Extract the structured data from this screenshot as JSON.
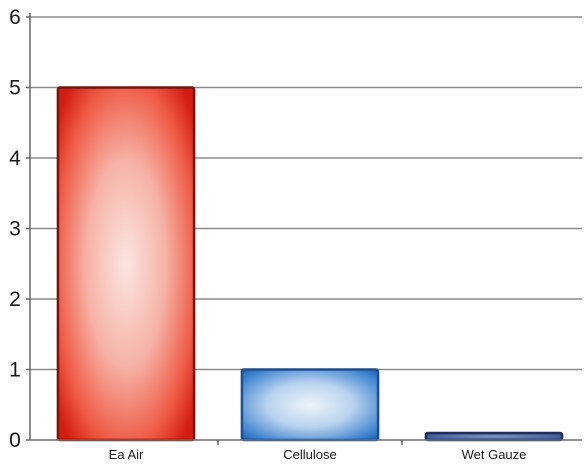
{
  "chart_data": {
    "type": "bar",
    "title": "",
    "xlabel": "",
    "ylabel": "",
    "categories": [
      "Ea Air",
      "Cellulose",
      "Wet Gauze"
    ],
    "values": [
      5,
      1,
      0.1
    ],
    "ylim": [
      0,
      6
    ],
    "yticks": [
      "0",
      "1",
      "2",
      "3",
      "4",
      "5",
      "6"
    ],
    "grid": true,
    "legend": "none",
    "bar_colors": [
      "#e8301e",
      "#2f73c8",
      "#2f4d8a"
    ]
  }
}
